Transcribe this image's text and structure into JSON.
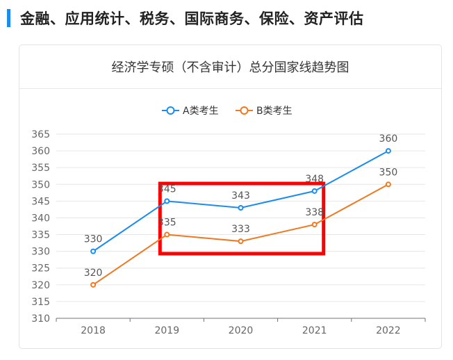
{
  "section": {
    "title": "金融、应用统计、税务、国际商务、保险、资产评估"
  },
  "colors": {
    "accent": "#1a8cf0",
    "series_a": "#1a8cf0",
    "series_b": "#f07820",
    "highlight": "#ff0000"
  },
  "chart_data": {
    "type": "line",
    "title": "经济学专硕（不含审计）总分国家线趋势图",
    "xlabel": "",
    "ylabel": "",
    "categories": [
      "2018",
      "2019",
      "2020",
      "2021",
      "2022"
    ],
    "series": [
      {
        "name": "A类考生",
        "values": [
          330,
          345,
          343,
          348,
          360
        ]
      },
      {
        "name": "B类考生",
        "values": [
          320,
          335,
          333,
          338,
          350
        ]
      }
    ],
    "ylim": [
      310,
      365
    ],
    "yticks": [
      310,
      315,
      320,
      325,
      330,
      335,
      340,
      345,
      350,
      355,
      360,
      365
    ],
    "grid": true,
    "legend": "top-center",
    "highlight_box": {
      "x_from": "2019",
      "x_to": "2021"
    }
  }
}
